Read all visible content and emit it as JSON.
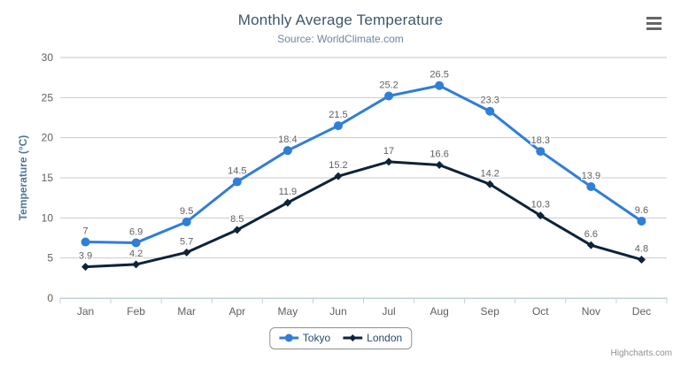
{
  "header": {
    "title": "Monthly Average Temperature",
    "subtitle": "Source: WorldClimate.com"
  },
  "y_axis_title": "Temperature (°C)",
  "credits": "Highcharts.com",
  "colors": {
    "title": "#3e576f",
    "subtitle": "#6d869f",
    "axis_title": "#4d759e",
    "axis_labels": "#606060",
    "data_labels": "#606060",
    "gridline": "#c9c9c9",
    "axis_line": "#c0d0e0",
    "legend_text": "#274b6d",
    "legend_border": "#909090",
    "credits": "#909090",
    "menu_icon": "#666666",
    "tokyo": "#2f7ed8",
    "london": "#0d233a"
  },
  "chart_data": {
    "type": "line",
    "title": "Monthly Average Temperature",
    "subtitle": "Source: WorldClimate.com",
    "categories": [
      "Jan",
      "Feb",
      "Mar",
      "Apr",
      "May",
      "Jun",
      "Jul",
      "Aug",
      "Sep",
      "Oct",
      "Nov",
      "Dec"
    ],
    "series": [
      {
        "name": "Tokyo",
        "color": "#2f7ed8",
        "marker": "circle",
        "values": [
          7,
          6.9,
          9.5,
          14.5,
          18.4,
          21.5,
          25.2,
          26.5,
          23.3,
          18.3,
          13.9,
          9.6
        ]
      },
      {
        "name": "London",
        "color": "#0d233a",
        "marker": "diamond",
        "values": [
          3.9,
          4.2,
          5.7,
          8.5,
          11.9,
          15.2,
          17,
          16.6,
          14.2,
          10.3,
          6.6,
          4.8
        ]
      }
    ],
    "xlabel": "",
    "ylabel": "Temperature (°C)",
    "ylim": [
      0,
      30
    ],
    "yticks": [
      0,
      5,
      10,
      15,
      20,
      25,
      30
    ],
    "grid": true,
    "legend_position": "bottom-center",
    "data_labels": true
  }
}
